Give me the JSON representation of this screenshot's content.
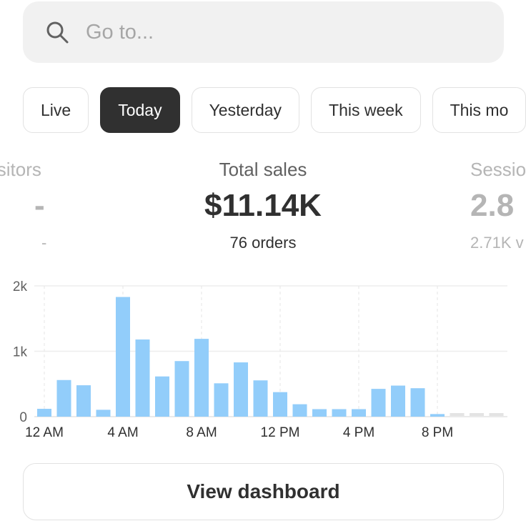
{
  "search": {
    "placeholder": "Go to...",
    "icon": "search-icon"
  },
  "tabs": [
    {
      "label": "Live"
    },
    {
      "label": "Today",
      "active": true
    },
    {
      "label": "Yesterday"
    },
    {
      "label": "This week"
    },
    {
      "label": "This mo"
    }
  ],
  "metrics": [
    {
      "label": "isitors",
      "value": "-",
      "sub": "-"
    },
    {
      "label": "Total sales",
      "value": "$11.14K",
      "sub": "76 orders"
    },
    {
      "label": "Sessio",
      "value": "2.8",
      "sub": "2.71K v"
    }
  ],
  "chart_data": {
    "type": "bar",
    "x": [
      "12 AM",
      "1 AM",
      "2 AM",
      "3 AM",
      "4 AM",
      "5 AM",
      "6 AM",
      "7 AM",
      "8 AM",
      "9 AM",
      "10 AM",
      "11 AM",
      "12 PM",
      "1 PM",
      "2 PM",
      "3 PM",
      "4 PM",
      "5 PM",
      "6 PM",
      "7 PM",
      "8 PM",
      "9 PM",
      "10 PM",
      "11 PM"
    ],
    "values": [
      120,
      560,
      480,
      105,
      1830,
      1180,
      615,
      850,
      1190,
      510,
      830,
      555,
      375,
      190,
      115,
      115,
      115,
      425,
      475,
      435,
      40,
      null,
      null,
      null
    ],
    "xticks": [
      "12 AM",
      "4 AM",
      "8 AM",
      "12 PM",
      "4 PM",
      "8 PM"
    ],
    "yticks": [
      "0",
      "1k",
      "2k"
    ],
    "ylim": [
      0,
      2000
    ],
    "grid": true,
    "bar_color": "#92cdfa",
    "future_color": "#e3e3e3"
  },
  "button": {
    "label": "View dashboard"
  }
}
